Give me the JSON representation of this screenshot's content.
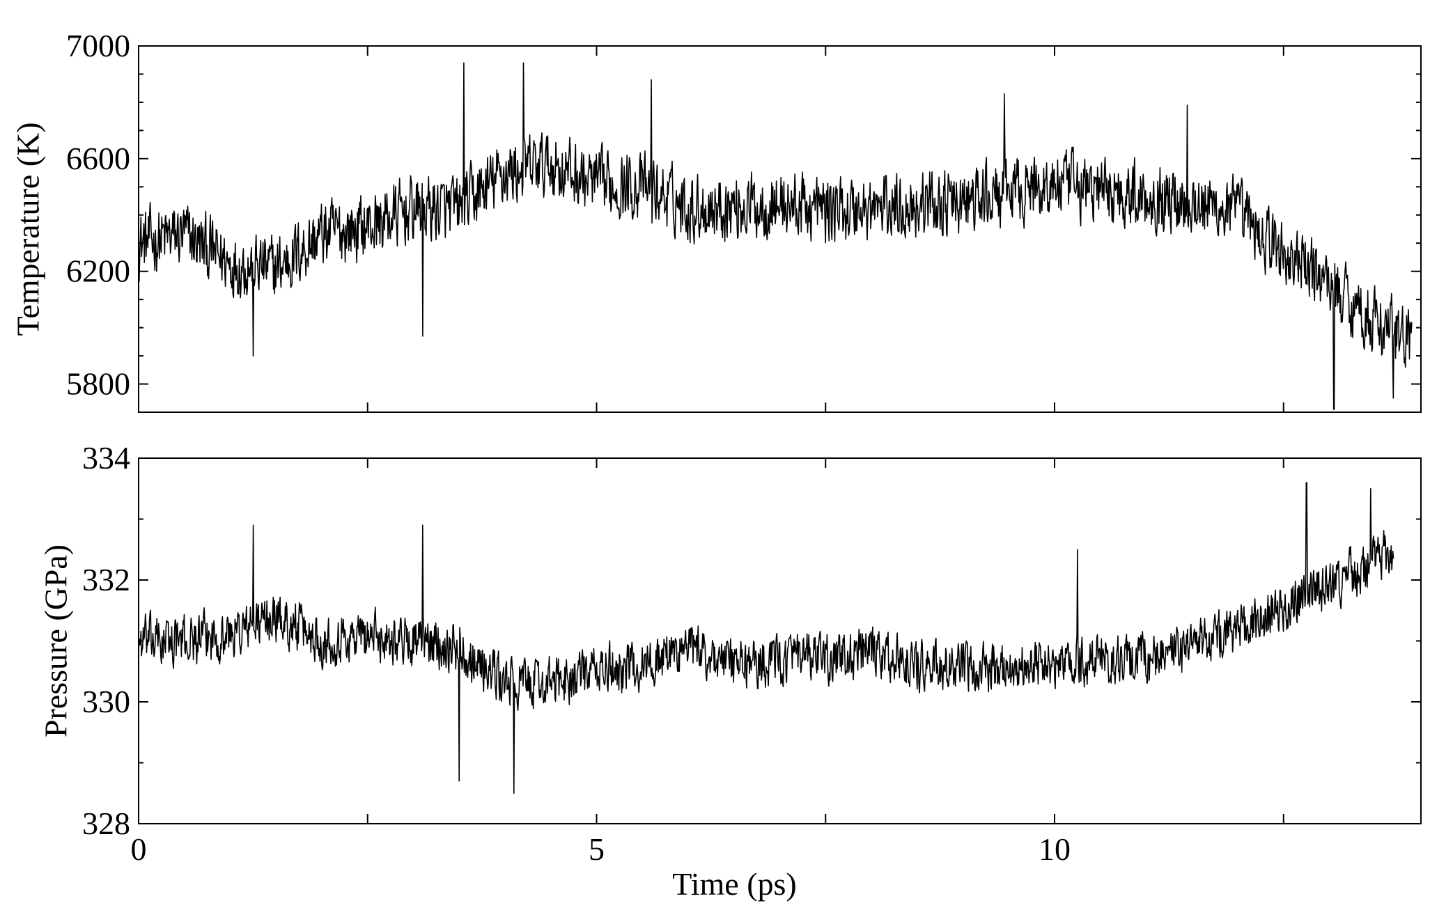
{
  "chart_data": [
    {
      "type": "line",
      "title": "",
      "xlabel": "",
      "ylabel": "Temperature (K)",
      "xlim": [
        0,
        14
      ],
      "ylim": [
        5700,
        7000
      ],
      "x_ticks": [
        0,
        2.5,
        5,
        7.5,
        10,
        12.5
      ],
      "x_tick_labels": [],
      "y_ticks": [
        5800,
        6200,
        6600,
        7000
      ],
      "y_tick_labels": [
        "5800",
        "6200",
        "6600",
        "7000"
      ],
      "y_minor_ticks": [
        5900,
        6000,
        6100,
        6300,
        6400,
        6500,
        6700,
        6800,
        6900
      ],
      "grid": false,
      "series_color": "#000000",
      "series": [
        {
          "x": [
            0.0,
            0.5,
            1.0,
            1.5,
            2.0,
            2.5,
            3.0,
            3.5,
            4.0,
            4.5,
            5.0,
            5.5,
            6.0,
            6.5,
            7.0,
            7.5,
            8.0,
            8.5,
            9.0,
            9.5,
            10.0,
            10.5,
            11.0,
            11.5,
            12.0,
            12.5,
            13.0,
            13.5,
            13.9
          ],
          "y": [
            6300,
            6330,
            6230,
            6210,
            6330,
            6360,
            6420,
            6420,
            6550,
            6580,
            6510,
            6500,
            6430,
            6430,
            6440,
            6420,
            6420,
            6440,
            6440,
            6480,
            6510,
            6490,
            6470,
            6450,
            6410,
            6260,
            6160,
            6020,
            5950
          ],
          "noise_amplitude": 160,
          "spikes": [
            [
              3.55,
              6940
            ],
            [
              4.2,
              6940
            ],
            [
              5.6,
              6880
            ],
            [
              9.45,
              6830
            ],
            [
              11.45,
              6790
            ],
            [
              13.05,
              5710
            ],
            [
              13.7,
              5750
            ],
            [
              1.25,
              5900
            ],
            [
              3.1,
              5970
            ]
          ]
        }
      ]
    },
    {
      "type": "line",
      "title": "",
      "xlabel": "Time (ps)",
      "ylabel": "Pressure (GPa)",
      "xlim": [
        0,
        14
      ],
      "ylim": [
        328,
        334
      ],
      "x_ticks": [
        0,
        2.5,
        5,
        7.5,
        10,
        12.5
      ],
      "x_tick_labels": [
        "0",
        "",
        "5",
        "",
        "10",
        ""
      ],
      "y_ticks": [
        328,
        330,
        332,
        334
      ],
      "y_tick_labels": [
        "328",
        "330",
        "332",
        "334"
      ],
      "y_minor_ticks": [
        329,
        331,
        333
      ],
      "grid": false,
      "series_color": "#000000",
      "series": [
        {
          "x": [
            0.0,
            0.5,
            1.0,
            1.5,
            2.0,
            2.5,
            3.0,
            3.5,
            4.0,
            4.5,
            5.0,
            5.5,
            6.0,
            6.5,
            7.0,
            7.5,
            8.0,
            8.5,
            9.0,
            9.5,
            10.0,
            10.5,
            11.0,
            11.5,
            12.0,
            12.5,
            13.0,
            13.5,
            13.7
          ],
          "y": [
            331.0,
            331.0,
            331.1,
            331.4,
            331.0,
            331.1,
            331.0,
            330.9,
            330.3,
            330.3,
            330.5,
            330.6,
            330.9,
            330.6,
            330.7,
            330.7,
            330.8,
            330.6,
            330.5,
            330.6,
            330.6,
            330.7,
            330.7,
            330.9,
            331.2,
            331.5,
            331.9,
            332.3,
            332.5
          ],
          "noise_amplitude": 0.55,
          "spikes": [
            [
              1.25,
              332.9
            ],
            [
              3.1,
              332.9
            ],
            [
              3.5,
              328.7
            ],
            [
              4.1,
              328.5
            ],
            [
              10.25,
              332.5
            ],
            [
              12.75,
              333.6
            ],
            [
              13.45,
              333.5
            ]
          ]
        }
      ]
    }
  ]
}
